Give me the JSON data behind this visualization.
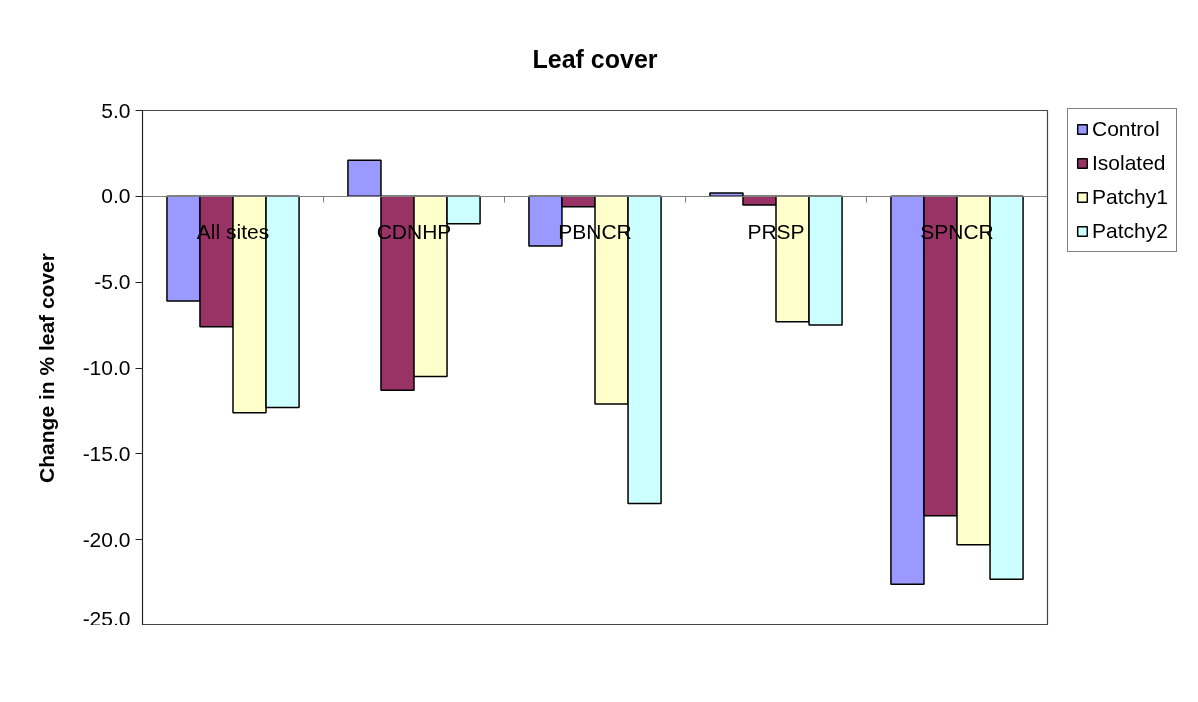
{
  "chart_data": {
    "type": "bar",
    "title": "Leaf cover",
    "ylabel": "Change in % leaf cover",
    "categories": [
      "All sites",
      "CDNHP",
      "PBNCR",
      "PRSP",
      "SPNCR"
    ],
    "series": [
      {
        "name": "Control",
        "color": "#9999ff",
        "values": [
          -6.1,
          2.1,
          -2.9,
          0.2,
          -22.6
        ]
      },
      {
        "name": "Isolated",
        "color": "#993366",
        "values": [
          -7.6,
          -11.3,
          -0.6,
          -0.5,
          -18.6
        ]
      },
      {
        "name": "Patchy1",
        "color": "#ffffcc",
        "values": [
          -12.6,
          -10.5,
          -12.1,
          -7.3,
          -20.3
        ]
      },
      {
        "name": "Patchy2",
        "color": "#ccffff",
        "values": [
          -12.3,
          -1.6,
          -17.9,
          -7.5,
          -22.3
        ]
      }
    ],
    "ylim": [
      -25,
      5
    ],
    "yticks": [
      {
        "value": 5,
        "label": "5.0"
      },
      {
        "value": 0,
        "label": "0.0"
      },
      {
        "value": -5,
        "label": "-5.0"
      },
      {
        "value": -10,
        "label": "-10.0"
      },
      {
        "value": -15,
        "label": "-15.0"
      },
      {
        "value": -20,
        "label": "-20.0"
      },
      {
        "value": -25,
        "label": "-25.0"
      }
    ],
    "grid": false,
    "legend": "right"
  }
}
